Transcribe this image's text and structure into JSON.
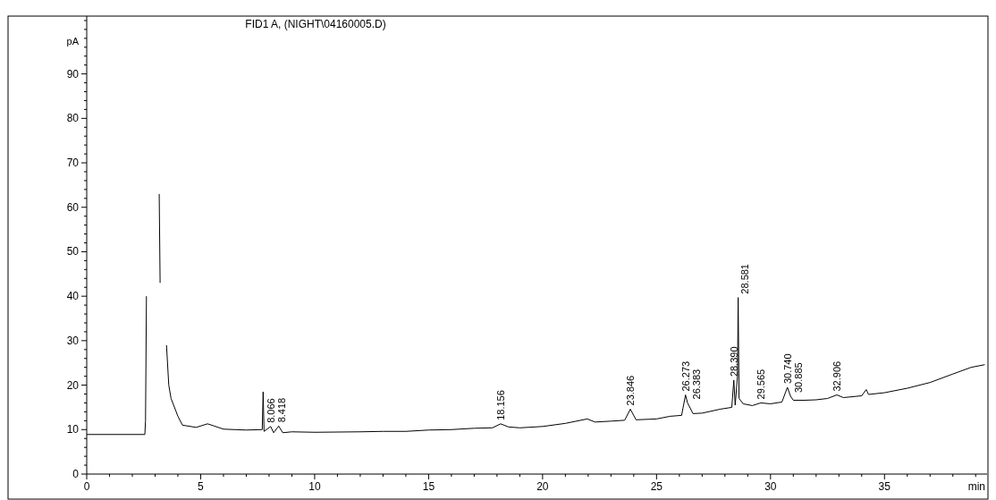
{
  "chart_data": {
    "type": "line",
    "title": "FID1 A, (NIGHT\\04160005.D)",
    "xlabel": "min",
    "ylabel": "pA",
    "xlim": [
      0,
      39.5
    ],
    "xticks": [
      0,
      {
        "value": 1,
        "label": null
      },
      {
        "value": 2,
        "label": null
      },
      {
        "value": 3,
        "label": null
      },
      {
        "value": 4,
        "label": null
      },
      5,
      {
        "value": 6,
        "label": null
      },
      {
        "value": 7,
        "label": null
      },
      {
        "value": 8,
        "label": null
      },
      {
        "value": 9,
        "label": null
      },
      10,
      {
        "value": 11,
        "label": null
      },
      {
        "value": 12,
        "label": null
      },
      {
        "value": 13,
        "label": null
      },
      {
        "value": 14,
        "label": null
      },
      15,
      {
        "value": 16,
        "label": null
      },
      {
        "value": 17,
        "label": null
      },
      {
        "value": 18,
        "label": null
      },
      {
        "value": 19,
        "label": null
      },
      20,
      {
        "value": 21,
        "label": null
      },
      {
        "value": 22,
        "label": null
      },
      {
        "value": 23,
        "label": null
      },
      {
        "value": 24,
        "label": null
      },
      25,
      {
        "value": 26,
        "label": null
      },
      {
        "value": 27,
        "label": null
      },
      {
        "value": 28,
        "label": null
      },
      {
        "value": 29,
        "label": null
      },
      30,
      {
        "value": 31,
        "label": null
      },
      {
        "value": 32,
        "label": null
      },
      {
        "value": 33,
        "label": null
      },
      {
        "value": 34,
        "label": null
      },
      35,
      {
        "value": 36,
        "label": null
      },
      {
        "value": 37,
        "label": null
      },
      {
        "value": 38,
        "label": null
      },
      {
        "value": 39,
        "label": null
      }
    ],
    "ylim": [
      0,
      103
    ],
    "yticks": [
      0,
      {
        "value": 2,
        "label": null
      },
      {
        "value": 4,
        "label": null
      },
      {
        "value": 6,
        "label": null
      },
      {
        "value": 8,
        "label": null
      },
      10,
      {
        "value": 12,
        "label": null
      },
      {
        "value": 14,
        "label": null
      },
      {
        "value": 16,
        "label": null
      },
      {
        "value": 18,
        "label": null
      },
      20,
      {
        "value": 22,
        "label": null
      },
      {
        "value": 24,
        "label": null
      },
      {
        "value": 26,
        "label": null
      },
      {
        "value": 28,
        "label": null
      },
      30,
      {
        "value": 32,
        "label": null
      },
      {
        "value": 34,
        "label": null
      },
      {
        "value": 36,
        "label": null
      },
      {
        "value": 38,
        "label": null
      },
      40,
      {
        "value": 42,
        "label": null
      },
      {
        "value": 44,
        "label": null
      },
      {
        "value": 46,
        "label": null
      },
      {
        "value": 48,
        "label": null
      },
      50,
      {
        "value": 52,
        "label": null
      },
      {
        "value": 54,
        "label": null
      },
      {
        "value": 56,
        "label": null
      },
      {
        "value": 58,
        "label": null
      },
      60,
      {
        "value": 62,
        "label": null
      },
      {
        "value": 64,
        "label": null
      },
      {
        "value": 66,
        "label": null
      },
      {
        "value": 68,
        "label": null
      },
      70,
      {
        "value": 72,
        "label": null
      },
      {
        "value": 74,
        "label": null
      },
      {
        "value": 76,
        "label": null
      },
      {
        "value": 78,
        "label": null
      },
      80,
      {
        "value": 82,
        "label": null
      },
      {
        "value": 84,
        "label": null
      },
      {
        "value": 86,
        "label": null
      },
      {
        "value": 88,
        "label": null
      },
      90,
      {
        "value": 92,
        "label": null
      },
      {
        "value": 94,
        "label": null
      },
      {
        "value": 96,
        "label": null
      },
      {
        "value": 98,
        "label": null
      },
      {
        "value": 100,
        "label": null
      },
      {
        "value": 102,
        "label": null
      }
    ],
    "grid": false,
    "series": [
      {
        "color": "#000000",
        "x": [
          0,
          2.55,
          2.58,
          2.62,
          2.7,
          3.1,
          3.18,
          3.22,
          3.26,
          3.4,
          3.5,
          3.6,
          3.7,
          4.0,
          4.2,
          4.8,
          5.3,
          5.6,
          6.0,
          7.0,
          7.7,
          7.74,
          7.78,
          8.07,
          8.2,
          8.42,
          8.6,
          9,
          10,
          12,
          13,
          14,
          15,
          16,
          17,
          17.8,
          18.16,
          18.5,
          19,
          20,
          21,
          21.96,
          22.3,
          23,
          23.6,
          23.85,
          24.1,
          25,
          25.6,
          26.1,
          26.27,
          26.36,
          26.6,
          27,
          27.8,
          28.3,
          28.39,
          28.45,
          28.55,
          28.58,
          28.62,
          28.8,
          29.2,
          29.57,
          30,
          30.5,
          30.74,
          30.88,
          31,
          31.5,
          32,
          32.5,
          32.91,
          33.2,
          34,
          34.2,
          34.3,
          35,
          36,
          37,
          38,
          38.8,
          39.4
        ],
        "values": [
          8.9,
          8.9,
          12,
          40,
          null,
          null,
          63,
          43,
          null,
          null,
          29,
          20,
          17,
          13,
          11,
          10.5,
          11.3,
          10.8,
          10.1,
          9.9,
          10,
          18.5,
          9.6,
          10.7,
          9.3,
          10.8,
          9.3,
          9.5,
          9.4,
          9.5,
          9.6,
          9.6,
          9.9,
          10,
          10.3,
          10.4,
          11.3,
          10.6,
          10.4,
          10.7,
          11.4,
          12.4,
          11.7,
          11.9,
          12.1,
          14.6,
          12.2,
          12.4,
          13,
          13.2,
          17.8,
          16,
          13.6,
          13.7,
          14.6,
          15,
          21.1,
          15.5,
          22,
          39.7,
          17,
          15.8,
          15.4,
          16,
          15.8,
          16.2,
          19.5,
          17.5,
          16.6,
          16.6,
          16.7,
          17,
          17.8,
          17.2,
          17.6,
          19,
          17.9,
          18.3,
          19.3,
          20.6,
          22.5,
          24,
          24.6
        ]
      }
    ],
    "annotations": [
      {
        "text": "8.066",
        "x": 8.07,
        "y": 10.7
      },
      {
        "text": "8.418",
        "x": 8.42,
        "y": 10.8
      },
      {
        "text": "18.156",
        "x": 18.16,
        "y": 11.3
      },
      {
        "text": "23.846",
        "x": 23.85,
        "y": 14.6
      },
      {
        "text": "26.273",
        "x": 26.27,
        "y": 17.8
      },
      {
        "text": "26.383",
        "x": 26.36,
        "y": 16
      },
      {
        "text": "28.390",
        "x": 28.39,
        "y": 21.1
      },
      {
        "text": "28.581",
        "x": 28.58,
        "y": 39.7
      },
      {
        "text": "29.565",
        "x": 29.57,
        "y": 16
      },
      {
        "text": "30.740",
        "x": 30.74,
        "y": 19.5
      },
      {
        "text": "30.885",
        "x": 30.88,
        "y": 17.5
      },
      {
        "text": "32.906",
        "x": 32.91,
        "y": 17.8
      }
    ]
  }
}
